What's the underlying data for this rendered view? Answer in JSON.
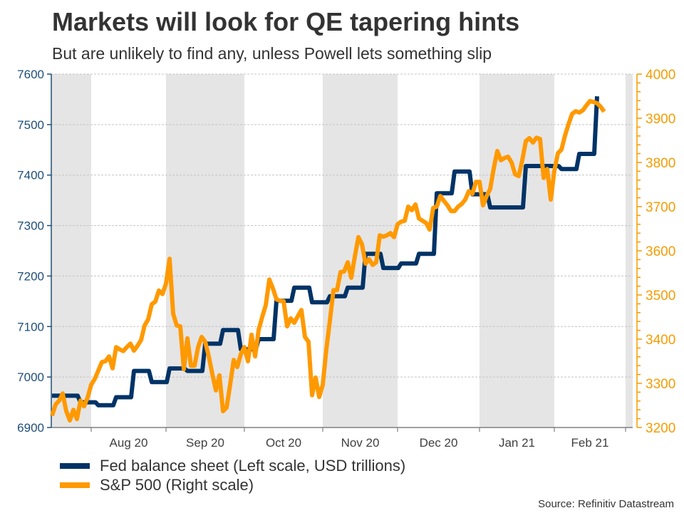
{
  "chart_data": {
    "type": "line",
    "title": "Markets will look for QE tapering hints",
    "subtitle": "But are unlikely to find any, unless Powell lets something slip",
    "source": "Source: Refinitiv Datastream",
    "xlim": [
      "2020-07-17",
      "2021-03-03"
    ],
    "x_axis_calendar": "weekdays",
    "x_ticks": [
      "2020-08-01",
      "2020-09-01",
      "2020-10-01",
      "2020-11-01",
      "2020-12-01",
      "2021-01-01",
      "2021-02-01",
      "2021-03-01"
    ],
    "x_tick_labels": [
      {
        "label": "Aug 20",
        "month": "2020-08"
      },
      {
        "label": "Sep 20",
        "month": "2020-09"
      },
      {
        "label": "Oct 20",
        "month": "2020-10"
      },
      {
        "label": "Nov 20",
        "month": "2020-11"
      },
      {
        "label": "Dec 20",
        "month": "2020-12"
      },
      {
        "label": "Jan 21",
        "month": "2021-01"
      },
      {
        "label": "Feb 21",
        "month": "2021-02"
      }
    ],
    "shaded_months": [
      "2020-07",
      "2020-09",
      "2020-11",
      "2021-01",
      "2021-03"
    ],
    "shade_color": "#e5e5e5",
    "grid": "horizontal dashed at left-axis ticks",
    "y_left": {
      "lim": [
        6900,
        7600
      ],
      "ticks": [
        "6900",
        "7000",
        "7100",
        "7200",
        "7300",
        "7400",
        "7500",
        "7600"
      ],
      "color": "#1f4e79"
    },
    "y_right": {
      "lim": [
        3200,
        4000
      ],
      "ticks": [
        "3200",
        "3300",
        "3400",
        "3500",
        "3600",
        "3700",
        "3800",
        "3900",
        "4000"
      ],
      "minor_step": 20,
      "color": "#f59c00"
    },
    "legend_placement": "bottom-left",
    "series": [
      {
        "name": "Fed balance sheet (Left scale, USD trillions)",
        "axis": "left",
        "style": "step",
        "color": "#003366",
        "points": [
          [
            "2020-07-17",
            6963
          ],
          [
            "2020-07-29",
            6950
          ],
          [
            "2020-08-05",
            6944
          ],
          [
            "2020-08-12",
            6960
          ],
          [
            "2020-08-19",
            7012
          ],
          [
            "2020-08-26",
            6990
          ],
          [
            "2020-09-02",
            7017
          ],
          [
            "2020-09-09",
            7012
          ],
          [
            "2020-09-16",
            7066
          ],
          [
            "2020-09-23",
            7093
          ],
          [
            "2020-09-30",
            7055
          ],
          [
            "2020-10-07",
            7075
          ],
          [
            "2020-10-14",
            7151
          ],
          [
            "2020-10-21",
            7177
          ],
          [
            "2020-10-28",
            7148
          ],
          [
            "2020-11-04",
            7160
          ],
          [
            "2020-11-11",
            7177
          ],
          [
            "2020-11-18",
            7244
          ],
          [
            "2020-11-25",
            7216
          ],
          [
            "2020-12-02",
            7225
          ],
          [
            "2020-12-09",
            7244
          ],
          [
            "2020-12-16",
            7364
          ],
          [
            "2020-12-23",
            7407
          ],
          [
            "2020-12-30",
            7362
          ],
          [
            "2021-01-06",
            7336
          ],
          [
            "2021-01-13",
            7336
          ],
          [
            "2021-01-20",
            7418
          ],
          [
            "2021-01-27",
            7418
          ],
          [
            "2021-02-03",
            7412
          ],
          [
            "2021-02-10",
            7442
          ],
          [
            "2021-02-17",
            7556
          ]
        ]
      },
      {
        "name": "S&P 500 (Right scale)",
        "axis": "right",
        "style": "line",
        "color": "#ff9900",
        "points": [
          [
            "2020-07-17",
            3227
          ],
          [
            "2020-07-20",
            3252
          ],
          [
            "2020-07-21",
            3261
          ],
          [
            "2020-07-22",
            3277
          ],
          [
            "2020-07-23",
            3237
          ],
          [
            "2020-07-24",
            3216
          ],
          [
            "2020-07-27",
            3240
          ],
          [
            "2020-07-28",
            3219
          ],
          [
            "2020-07-29",
            3261
          ],
          [
            "2020-07-30",
            3248
          ],
          [
            "2020-07-31",
            3268
          ],
          [
            "2020-08-03",
            3297
          ],
          [
            "2020-08-04",
            3310
          ],
          [
            "2020-08-05",
            3329
          ],
          [
            "2020-08-06",
            3348
          ],
          [
            "2020-08-07",
            3350
          ],
          [
            "2020-08-10",
            3361
          ],
          [
            "2020-08-11",
            3334
          ],
          [
            "2020-08-12",
            3382
          ],
          [
            "2020-08-13",
            3377
          ],
          [
            "2020-08-14",
            3373
          ],
          [
            "2020-08-17",
            3382
          ],
          [
            "2020-08-18",
            3390
          ],
          [
            "2020-08-19",
            3374
          ],
          [
            "2020-08-20",
            3385
          ],
          [
            "2020-08-21",
            3398
          ],
          [
            "2020-08-24",
            3431
          ],
          [
            "2020-08-25",
            3445
          ],
          [
            "2020-08-26",
            3479
          ],
          [
            "2020-08-27",
            3485
          ],
          [
            "2020-08-28",
            3510
          ],
          [
            "2020-08-31",
            3502
          ],
          [
            "2020-09-01",
            3526
          ],
          [
            "2020-09-02",
            3582
          ],
          [
            "2020-09-03",
            3458
          ],
          [
            "2020-09-04",
            3431
          ],
          [
            "2020-09-07",
            3429
          ],
          [
            "2020-09-08",
            3332
          ],
          [
            "2020-09-09",
            3402
          ],
          [
            "2020-09-10",
            3340
          ],
          [
            "2020-09-11",
            3340
          ],
          [
            "2020-09-14",
            3382
          ],
          [
            "2020-09-15",
            3405
          ],
          [
            "2020-09-16",
            3394
          ],
          [
            "2020-09-17",
            3361
          ],
          [
            "2020-09-18",
            3321
          ],
          [
            "2020-09-21",
            3284
          ],
          [
            "2020-09-22",
            3318
          ],
          [
            "2020-09-23",
            3237
          ],
          [
            "2020-09-24",
            3245
          ],
          [
            "2020-09-25",
            3297
          ],
          [
            "2020-09-28",
            3353
          ],
          [
            "2020-09-29",
            3337
          ],
          [
            "2020-09-30",
            3366
          ],
          [
            "2020-10-01",
            3382
          ],
          [
            "2020-10-02",
            3350
          ],
          [
            "2020-10-05",
            3410
          ],
          [
            "2020-10-06",
            3361
          ],
          [
            "2020-10-07",
            3421
          ],
          [
            "2020-10-08",
            3450
          ],
          [
            "2020-10-09",
            3477
          ],
          [
            "2020-10-12",
            3535
          ],
          [
            "2020-10-13",
            3515
          ],
          [
            "2020-10-14",
            3490
          ],
          [
            "2020-10-15",
            3487
          ],
          [
            "2020-10-16",
            3486
          ],
          [
            "2020-10-19",
            3429
          ],
          [
            "2020-10-20",
            3447
          ],
          [
            "2020-10-21",
            3437
          ],
          [
            "2020-10-22",
            3452
          ],
          [
            "2020-10-23",
            3466
          ],
          [
            "2020-10-26",
            3405
          ],
          [
            "2020-10-27",
            3394
          ],
          [
            "2020-10-28",
            3273
          ],
          [
            "2020-10-29",
            3313
          ],
          [
            "2020-10-30",
            3269
          ],
          [
            "2020-11-02",
            3297
          ],
          [
            "2020-11-03",
            3377
          ],
          [
            "2020-11-04",
            3442
          ],
          [
            "2020-11-05",
            3511
          ],
          [
            "2020-11-06",
            3511
          ],
          [
            "2020-11-09",
            3552
          ],
          [
            "2020-11-10",
            3553
          ],
          [
            "2020-11-11",
            3574
          ],
          [
            "2020-11-12",
            3539
          ],
          [
            "2020-11-13",
            3587
          ],
          [
            "2020-11-16",
            3631
          ],
          [
            "2020-11-17",
            3615
          ],
          [
            "2020-11-18",
            3571
          ],
          [
            "2020-11-19",
            3581
          ],
          [
            "2020-11-20",
            3568
          ],
          [
            "2020-11-23",
            3574
          ],
          [
            "2020-11-24",
            3635
          ],
          [
            "2020-11-25",
            3632
          ],
          [
            "2020-11-26",
            3635
          ],
          [
            "2020-11-27",
            3640
          ],
          [
            "2020-11-30",
            3631
          ],
          [
            "2020-12-01",
            3660
          ],
          [
            "2020-12-02",
            3666
          ],
          [
            "2020-12-03",
            3668
          ],
          [
            "2020-12-04",
            3700
          ],
          [
            "2020-12-07",
            3692
          ],
          [
            "2020-12-08",
            3705
          ],
          [
            "2020-12-09",
            3673
          ],
          [
            "2020-12-10",
            3668
          ],
          [
            "2020-12-11",
            3663
          ],
          [
            "2020-12-14",
            3648
          ],
          [
            "2020-12-15",
            3697
          ],
          [
            "2020-12-16",
            3700
          ],
          [
            "2020-12-17",
            3724
          ],
          [
            "2020-12-18",
            3713
          ],
          [
            "2020-12-21",
            3703
          ],
          [
            "2020-12-22",
            3690
          ],
          [
            "2020-12-23",
            3690
          ],
          [
            "2020-12-24",
            3700
          ],
          [
            "2020-12-25",
            3706
          ],
          [
            "2020-12-28",
            3716
          ],
          [
            "2020-12-29",
            3735
          ],
          [
            "2020-12-30",
            3729
          ],
          [
            "2020-12-31",
            3756
          ],
          [
            "2021-01-01",
            3756
          ],
          [
            "2021-01-04",
            3703
          ],
          [
            "2021-01-05",
            3724
          ],
          [
            "2021-01-06",
            3740
          ],
          [
            "2021-01-07",
            3787
          ],
          [
            "2021-01-08",
            3826
          ],
          [
            "2021-01-11",
            3805
          ],
          [
            "2021-01-12",
            3810
          ],
          [
            "2021-01-13",
            3813
          ],
          [
            "2021-01-14",
            3800
          ],
          [
            "2021-01-15",
            3773
          ],
          [
            "2021-01-18",
            3769
          ],
          [
            "2021-01-19",
            3805
          ],
          [
            "2021-01-20",
            3848
          ],
          [
            "2021-01-21",
            3855
          ],
          [
            "2021-01-22",
            3845
          ],
          [
            "2021-01-25",
            3856
          ],
          [
            "2021-01-26",
            3853
          ],
          [
            "2021-01-27",
            3765
          ],
          [
            "2021-01-28",
            3785
          ],
          [
            "2021-01-29",
            3716
          ],
          [
            "2021-02-01",
            3781
          ],
          [
            "2021-02-02",
            3821
          ],
          [
            "2021-02-03",
            3829
          ],
          [
            "2021-02-04",
            3861
          ],
          [
            "2021-02-05",
            3887
          ],
          [
            "2021-02-08",
            3910
          ],
          [
            "2021-02-09",
            3916
          ],
          [
            "2021-02-10",
            3913
          ],
          [
            "2021-02-11",
            3918
          ],
          [
            "2021-02-12",
            3929
          ],
          [
            "2021-02-15",
            3939
          ],
          [
            "2021-02-16",
            3937
          ],
          [
            "2021-02-17",
            3934
          ],
          [
            "2021-02-18",
            3926
          ],
          [
            "2021-02-19",
            3915
          ]
        ]
      }
    ]
  }
}
